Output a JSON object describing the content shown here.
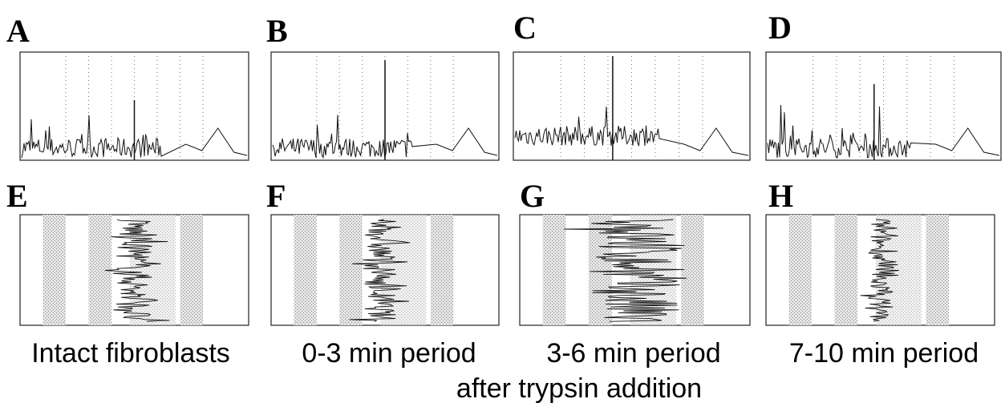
{
  "panels": {
    "top": [
      "A",
      "B",
      "C",
      "D"
    ],
    "bottom": [
      "E",
      "F",
      "G",
      "H"
    ]
  },
  "captions": [
    "Intact fibroblasts",
    "0-3 min  period",
    "3-6 min period",
    "7-10 min period"
  ],
  "subcaption": "after trypsin addition"
}
